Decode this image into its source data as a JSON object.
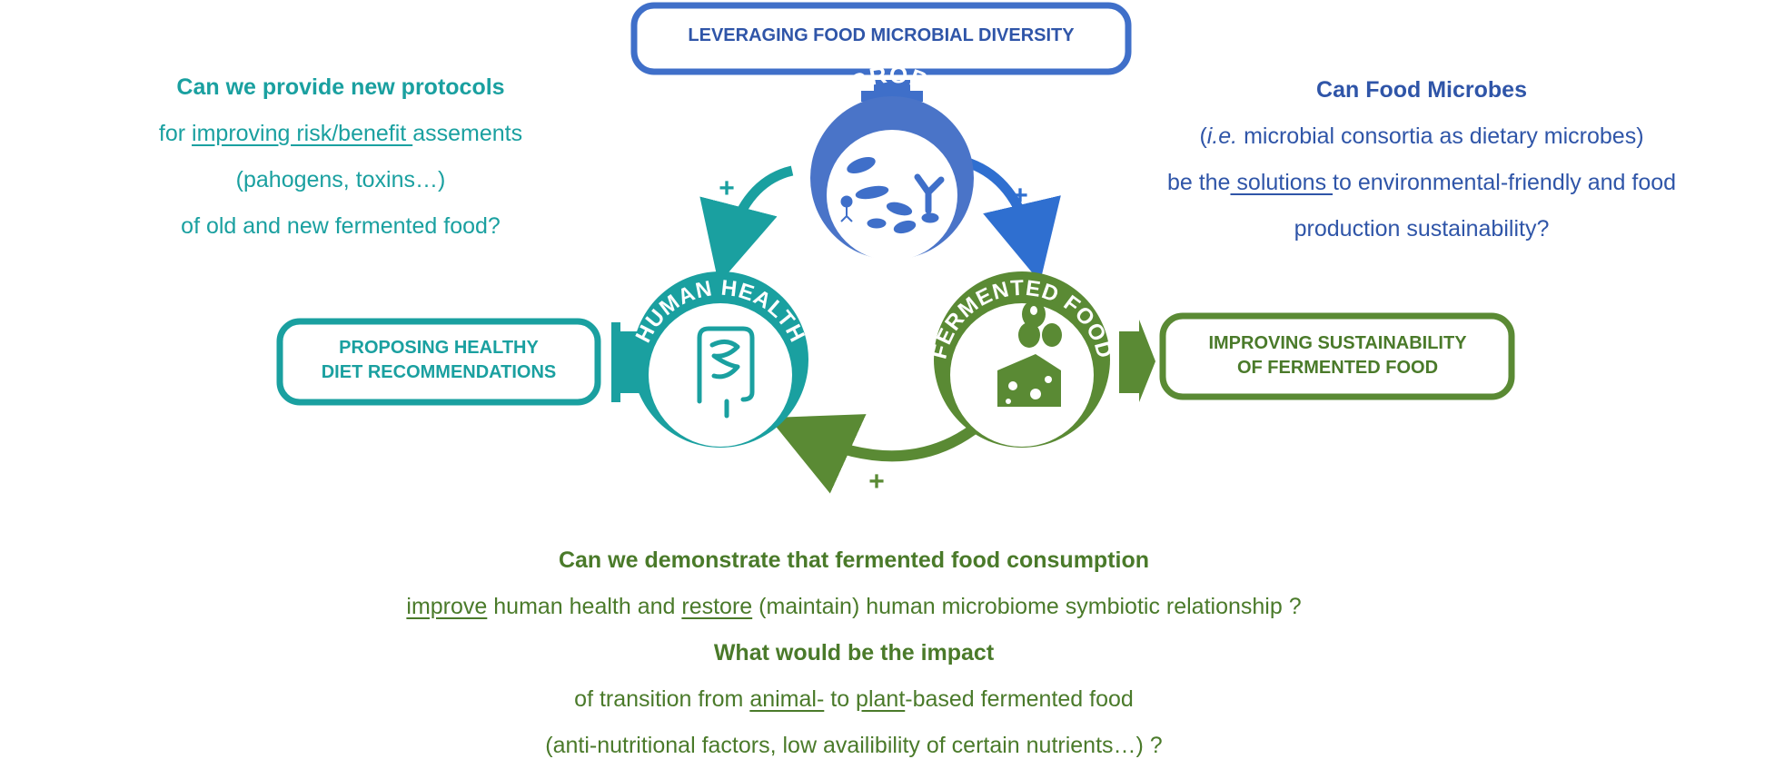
{
  "colors": {
    "blue": "#3f6fc9",
    "blue_dark": "#2f55a8",
    "teal": "#1aa0a0",
    "green": "#5a8a34",
    "green_dark": "#4a7a2a"
  },
  "nodes": {
    "microbes": {
      "label": "MICROBES",
      "icon": "microbes-icon"
    },
    "human_health": {
      "label": "HUMAN HEALTH",
      "icon": "intestine-icon"
    },
    "fermented_food": {
      "label": "FERMENTED FOOD",
      "icon": "olives-cheese-icon"
    }
  },
  "boxes": {
    "top": {
      "lines": [
        "LEVERAGING FOOD MICROBIAL DIVERSITY"
      ]
    },
    "left": {
      "lines": [
        "PROPOSING HEALTHY",
        "DIET RECOMMENDATIONS"
      ]
    },
    "right": {
      "lines": [
        "IMPROVING SUSTAINABILITY",
        "OF FERMENTED FOOD"
      ]
    }
  },
  "plus_sign": "+",
  "questions": {
    "teal": {
      "l1": "Can we provide new protocols",
      "l2_pre": "for ",
      "l2_u": "improving risk/benefit ",
      "l2_post": "assements",
      "l3": "(pahogens, toxins…)",
      "l4": "of old and new fermented food?"
    },
    "blue": {
      "l1": "Can Food Microbes",
      "l2_pre": "(",
      "l2_i": "i.e.",
      "l2_post": " microbial consortia as dietary microbes)",
      "l3_pre": "be the",
      "l3_u": " solutions ",
      "l3_post": "to environmental-friendly and food",
      "l4": "production sustainability?"
    },
    "green": {
      "l1": "Can we demonstrate that fermented food consumption",
      "l2_u1": "improve",
      "l2_mid": " human health and ",
      "l2_u2": "restore",
      "l2_post": " (maintain) human microbiome symbiotic relationship ?",
      "l3": "What would be the impact",
      "l4_pre": "of transition from ",
      "l4_u1": "animal-",
      "l4_mid": " to ",
      "l4_u2": "plant",
      "l4_post": "-based fermented food",
      "l5": "(anti-nutritional factors, low availibility of certain nutrients…) ?"
    }
  }
}
